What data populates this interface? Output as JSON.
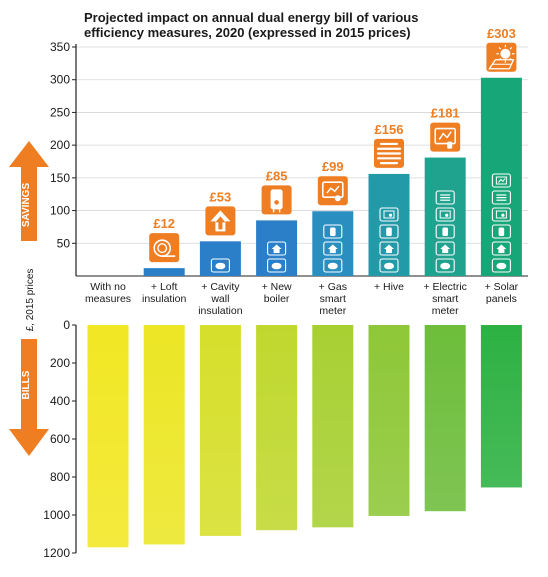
{
  "chart_data": {
    "type": "bar",
    "title_lines": [
      "Projected impact on annual dual energy bill of various",
      "efficiency measures, 2020 (expressed in 2015 prices)"
    ],
    "ylabel": "£, 2015 prices",
    "categories": [
      [
        "With no",
        "measures"
      ],
      [
        "+ Loft",
        "insulation"
      ],
      [
        "+ Cavity",
        "wall",
        "insulation"
      ],
      [
        "+ New",
        "boiler"
      ],
      [
        "+ Gas",
        "smart",
        "meter"
      ],
      [
        "+ Hive"
      ],
      [
        "+ Electric",
        "smart",
        "meter"
      ],
      [
        "+ Solar",
        "panels"
      ]
    ],
    "savings": {
      "axis_label": "SAVINGS",
      "values": [
        0,
        12,
        53,
        85,
        99,
        156,
        181,
        303
      ],
      "value_labels": [
        "",
        "£12",
        "£53",
        "£85",
        "£99",
        "£156",
        "£181",
        "£303"
      ],
      "ylim": [
        0,
        350
      ],
      "ticks": [
        50,
        100,
        150,
        200,
        250,
        300,
        350
      ],
      "colors": [
        "#2a7fc8",
        "#2a7fc8",
        "#2a7fc8",
        "#2a7fc8",
        "#2a8fc0",
        "#239aa7",
        "#1fa38f",
        "#17a677"
      ]
    },
    "bills": {
      "axis_label": "BILLS",
      "values": [
        1170,
        1155,
        1110,
        1080,
        1065,
        1005,
        980,
        855
      ],
      "ylim": [
        0,
        1200
      ],
      "ticks": [
        0,
        200,
        400,
        600,
        800,
        1000,
        1200
      ],
      "colors": [
        "#f2e723",
        "#ece625",
        "#d6df2a",
        "#c0d82e",
        "#a8d032",
        "#8ec737",
        "#6dbd3b",
        "#2db142"
      ]
    },
    "measure_icons": [
      "",
      "loft-insulation-icon",
      "house-arrow-icon",
      "boiler-icon",
      "smart-meter-icon",
      "hive-icon",
      "electric-meter-icon",
      "solar-panel-icon"
    ],
    "accent_color": "#ef7d22"
  }
}
